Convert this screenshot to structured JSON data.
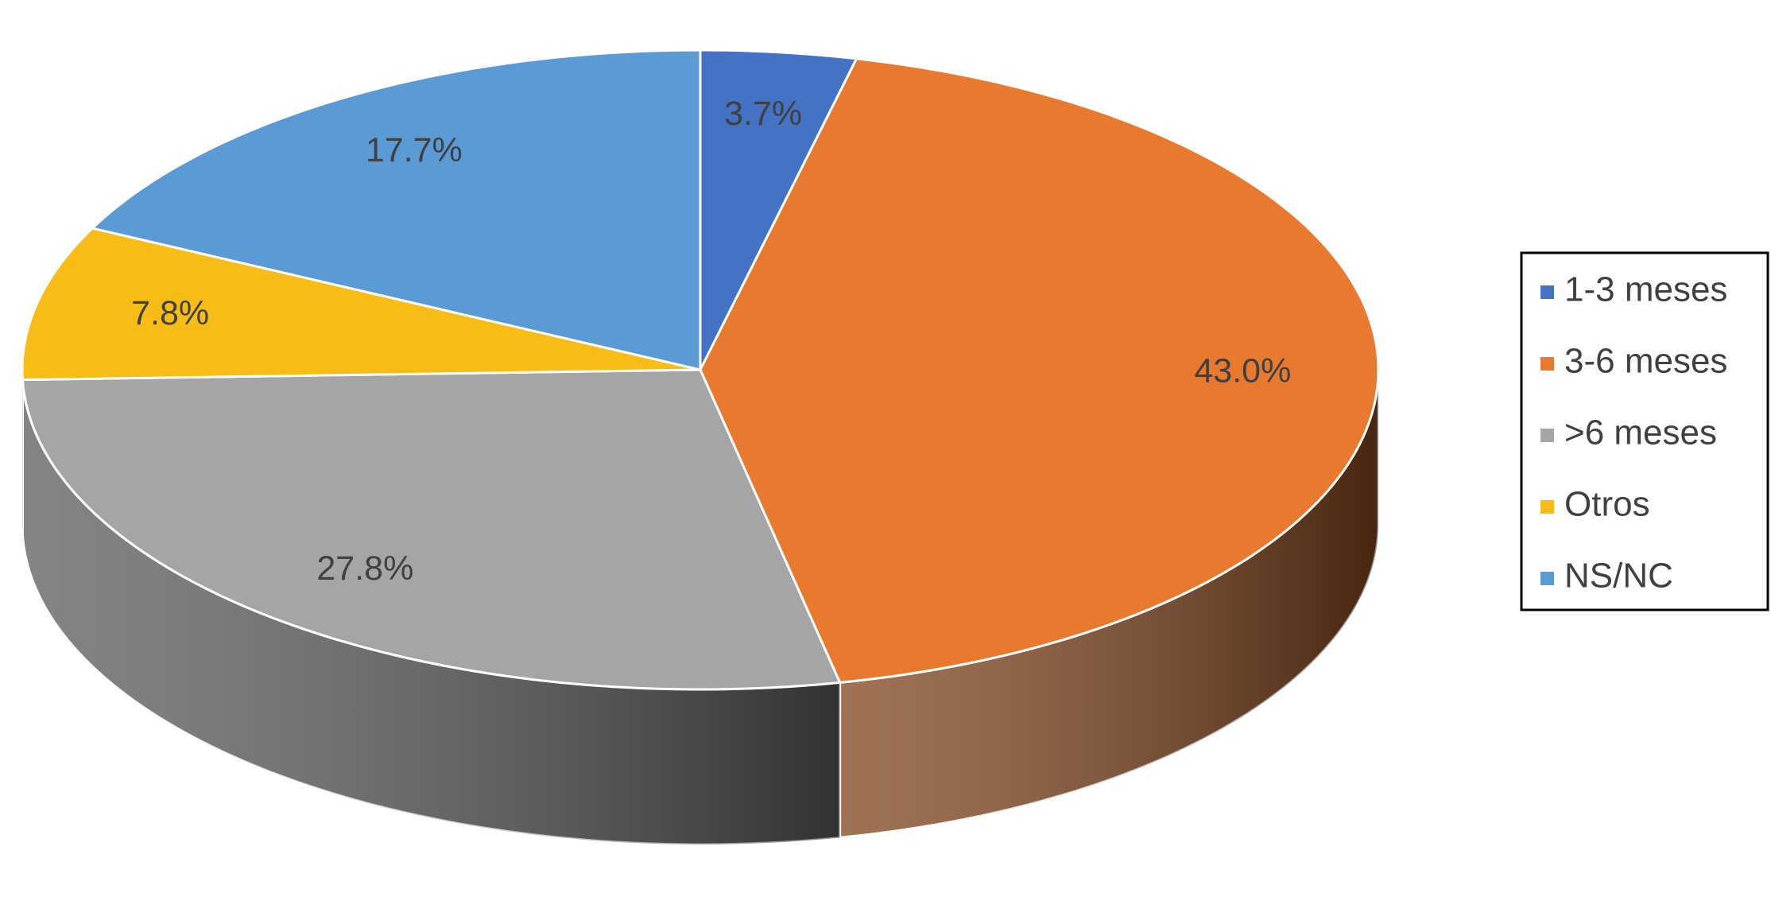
{
  "chart_data": {
    "type": "pie",
    "categories": [
      "1-3 meses",
      "3-6 meses",
      ">6 meses",
      "Otros",
      "NS/NC"
    ],
    "values": [
      3.7,
      43.0,
      27.8,
      7.8,
      17.7
    ],
    "value_labels": [
      "3.7%",
      "43.0%",
      "27.8%",
      "7.8%",
      "17.7%"
    ],
    "colors": [
      "#4472c4",
      "#e87a30",
      "#a5a5a5",
      "#f8bc17",
      "#5b9bd5"
    ],
    "legend": "right"
  }
}
